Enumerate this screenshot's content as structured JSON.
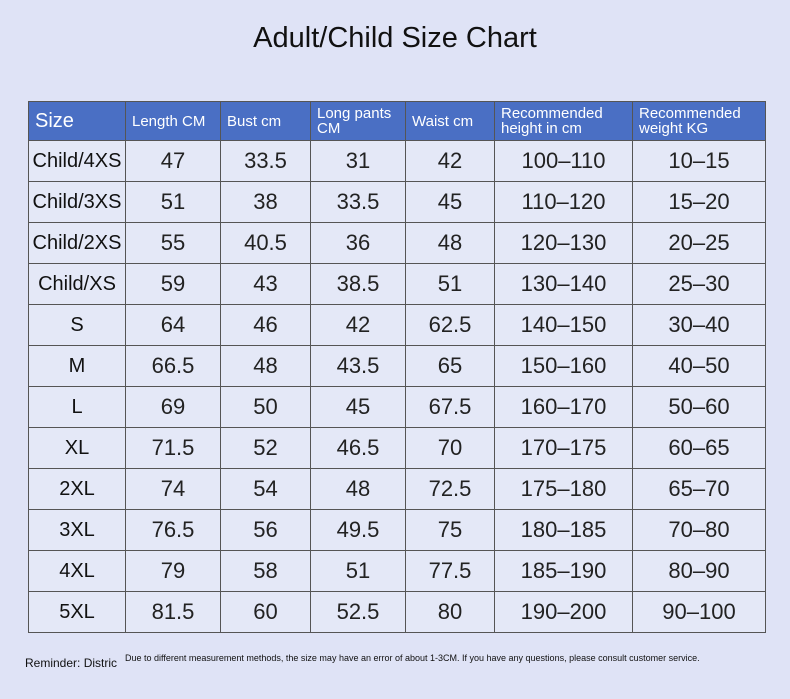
{
  "header": {
    "title": "Adult/Child Size Chart"
  },
  "table": {
    "columns": [
      "Size",
      "Length CM",
      "Bust cm",
      "Long pants CM",
      "Waist cm",
      "Recommended height in cm",
      "Recommended weight KG"
    ],
    "rows": [
      [
        "Child/4XS",
        "47",
        "33.5",
        "31",
        "42",
        "100–110",
        "10–15"
      ],
      [
        "Child/3XS",
        "51",
        "38",
        "33.5",
        "45",
        "110–120",
        "15–20"
      ],
      [
        "Child/2XS",
        "55",
        "40.5",
        "36",
        "48",
        "120–130",
        "20–25"
      ],
      [
        "Child/XS",
        "59",
        "43",
        "38.5",
        "51",
        "130–140",
        "25–30"
      ],
      [
        "S",
        "64",
        "46",
        "42",
        "62.5",
        "140–150",
        "30–40"
      ],
      [
        "M",
        "66.5",
        "48",
        "43.5",
        "65",
        "150–160",
        "40–50"
      ],
      [
        "L",
        "69",
        "50",
        "45",
        "67.5",
        "160–170",
        "50–60"
      ],
      [
        "XL",
        "71.5",
        "52",
        "46.5",
        "70",
        "170–175",
        "60–65"
      ],
      [
        "2XL",
        "74",
        "54",
        "48",
        "72.5",
        "175–180",
        "65–70"
      ],
      [
        "3XL",
        "76.5",
        "56",
        "49.5",
        "75",
        "180–185",
        "70–80"
      ],
      [
        "4XL",
        "79",
        "58",
        "51",
        "77.5",
        "185–190",
        "80–90"
      ],
      [
        "5XL",
        "81.5",
        "60",
        "52.5",
        "80",
        "190–200",
        "90–100"
      ]
    ]
  },
  "footer": {
    "reminder": "Reminder: Distric",
    "note": "Due to different measurement methods, the size may have an error of about 1-3CM. If you have any questions, please consult customer service."
  }
}
